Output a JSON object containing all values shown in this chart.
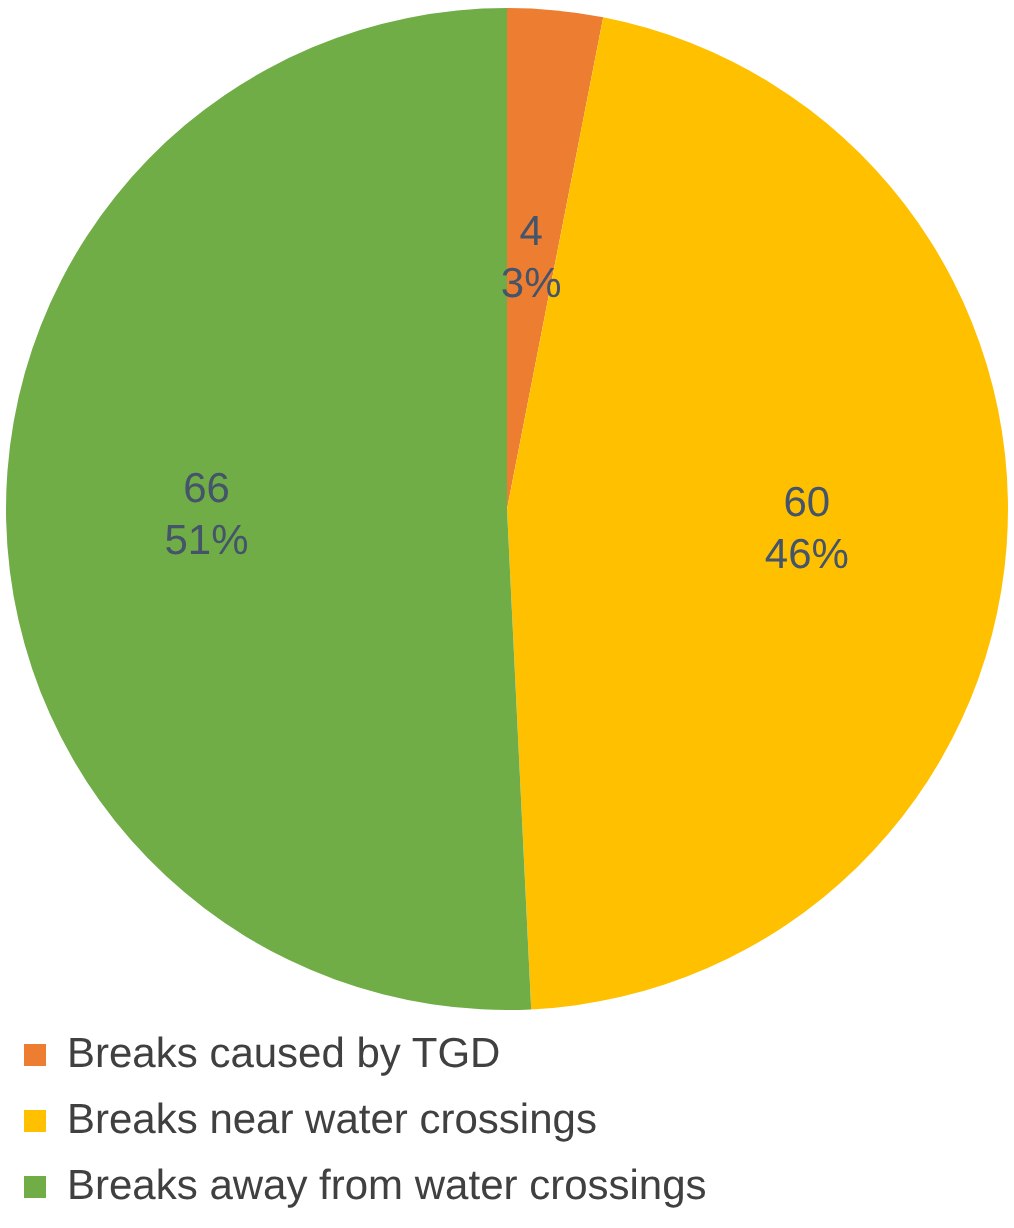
{
  "chart_data": {
    "type": "pie",
    "categories": [
      "Breaks caused by TGD",
      "Breaks near water crossings",
      "Breaks away from water crossings"
    ],
    "values": [
      4,
      60,
      66
    ],
    "colors": [
      "#ed7d31",
      "#ffc000",
      "#70ad47"
    ],
    "value_labels": [
      "4\n3%",
      "60\n46%",
      "66\n51%"
    ],
    "legend": "bottom"
  }
}
